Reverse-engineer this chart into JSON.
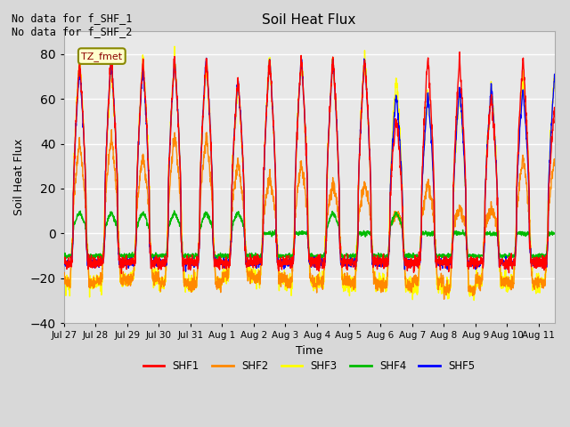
{
  "title": "Soil Heat Flux",
  "ylabel": "Soil Heat Flux",
  "xlabel": "Time",
  "annotation_text": "No data for f_SHF_1\nNo data for f_SHF_2",
  "legend_label": "TZ_fmet",
  "series_labels": [
    "SHF1",
    "SHF2",
    "SHF3",
    "SHF4",
    "SHF5"
  ],
  "series_colors": [
    "#ff0000",
    "#ff8800",
    "#ffff00",
    "#00bb00",
    "#0000ff"
  ],
  "ylim": [
    -40,
    90
  ],
  "yticks": [
    -40,
    -20,
    0,
    20,
    40,
    60,
    80
  ],
  "xtick_labels": [
    "Jul 27",
    "Jul 28",
    "Jul 29",
    "Jul 30",
    "Jul 31",
    "Aug 1",
    "Aug 2",
    "Aug 3",
    "Aug 4",
    "Aug 5",
    "Aug 6",
    "Aug 7",
    "Aug 8",
    "Aug 9",
    "Aug 10",
    "Aug 11"
  ],
  "bg_color": "#e8e8e8",
  "grid_color": "#ffffff",
  "n_days": 16,
  "day_peak_shf1": [
    78,
    79,
    78,
    79,
    79,
    70,
    79,
    79,
    79,
    79,
    52,
    79,
    79,
    62,
    79,
    56
  ],
  "day_peak_shf2": [
    41,
    43,
    35,
    44,
    44,
    32,
    25,
    31,
    22,
    22,
    10,
    22,
    11,
    11,
    34,
    33
  ],
  "day_peak_shf3": [
    78,
    75,
    78,
    79,
    76,
    68,
    78,
    79,
    79,
    79,
    70,
    64,
    65,
    66,
    71,
    72
  ],
  "day_peak_shf4": [
    10,
    10,
    10,
    10,
    10,
    10,
    0,
    0,
    10,
    0,
    10,
    0,
    0,
    0,
    0,
    0
  ],
  "day_peak_shf5": [
    75,
    79,
    75,
    79,
    79,
    70,
    79,
    79,
    79,
    79,
    64,
    63,
    66,
    66,
    66,
    71
  ],
  "night_val_shf1": [
    -13,
    -13,
    -13,
    -13,
    -13,
    -13,
    -13,
    -13,
    -13,
    -13,
    -13,
    -13,
    -13,
    -13,
    -13,
    -13
  ],
  "night_val_shf2": [
    -22,
    -21,
    -20,
    -22,
    -22,
    -18,
    -20,
    -22,
    -21,
    -22,
    -23,
    -21,
    -25,
    -21,
    -22,
    -22
  ],
  "night_val_shf3": [
    -22,
    -21,
    -20,
    -22,
    -22,
    -18,
    -20,
    -22,
    -21,
    -22,
    -23,
    -24,
    -25,
    -21,
    -22,
    -22
  ],
  "night_val_shf4": [
    -10,
    -10,
    -10,
    -10,
    -10,
    -10,
    -10,
    -10,
    -10,
    -10,
    -10,
    -10,
    -10,
    -10,
    -10,
    -10
  ],
  "night_val_shf5": [
    -13,
    -13,
    -13,
    -13,
    -13,
    -13,
    -13,
    -13,
    -13,
    -13,
    -13,
    -13,
    -13,
    -13,
    -13,
    -13
  ]
}
